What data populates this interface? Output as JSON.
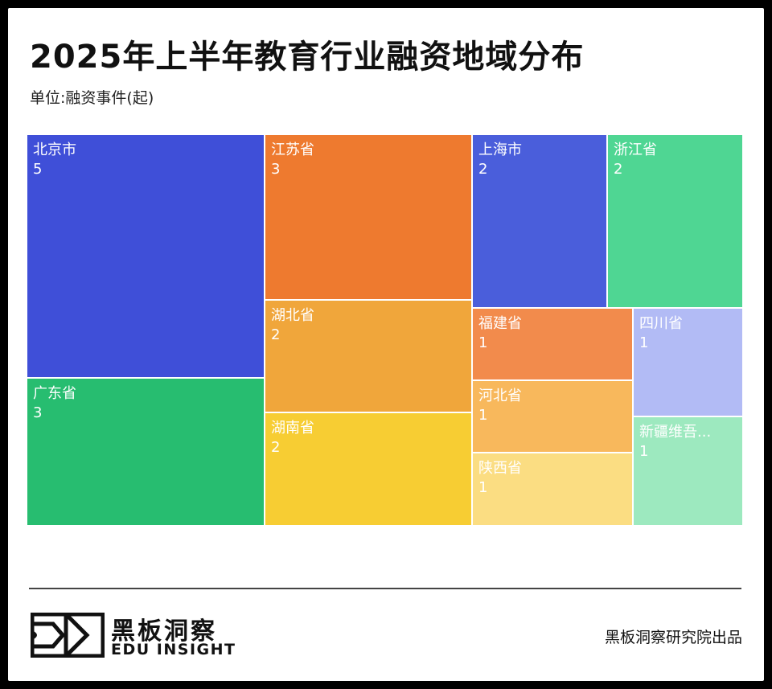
{
  "chart_data": {
    "type": "treemap",
    "title": "2025年上半年教育行业融资地域分布",
    "subtitle": "单位:融资事件(起)",
    "items": [
      {
        "name": "北京市",
        "value": 5,
        "color": "#3F4FD8"
      },
      {
        "name": "广东省",
        "value": 3,
        "color": "#27BD70"
      },
      {
        "name": "江苏省",
        "value": 3,
        "color": "#EE7A2F"
      },
      {
        "name": "湖北省",
        "value": 2,
        "color": "#F0A63B"
      },
      {
        "name": "湖南省",
        "value": 2,
        "color": "#F7CD33"
      },
      {
        "name": "上海市",
        "value": 2,
        "color": "#4A5EDB"
      },
      {
        "name": "浙江省",
        "value": 2,
        "color": "#4FD693"
      },
      {
        "name": "福建省",
        "value": 1,
        "color": "#F28B4C"
      },
      {
        "name": "四川省",
        "value": 1,
        "color": "#B2BBF5"
      },
      {
        "name": "河北省",
        "value": 1,
        "color": "#F8B85C"
      },
      {
        "name": "陕西省",
        "value": 1,
        "color": "#FBDD82"
      },
      {
        "name": "新疆维吾...",
        "value": 1,
        "color": "#9DE9BF"
      }
    ]
  },
  "brand": {
    "name_cn": "黑板洞察",
    "name_en": "EDU INSIGHT",
    "source": "黑板洞察研究院出品"
  }
}
